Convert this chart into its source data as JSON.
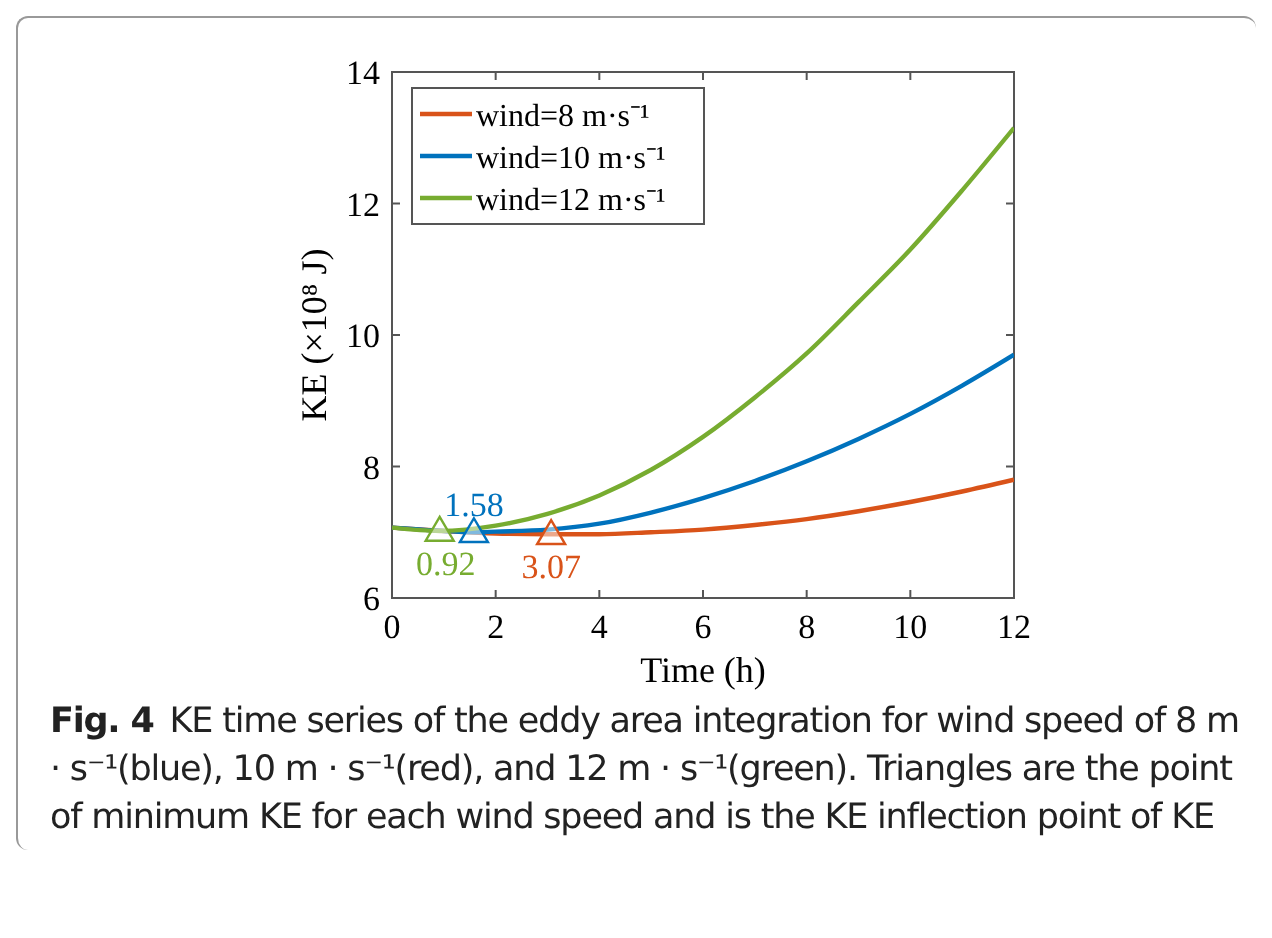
{
  "chart_data": {
    "type": "line",
    "xlabel": "Time (h)",
    "ylabel": "KE (×10⁸ J)",
    "xlim": [
      0,
      12
    ],
    "xticks": [
      0,
      2,
      4,
      6,
      8,
      10,
      12
    ],
    "ylim": [
      6,
      14
    ],
    "yticks": [
      6,
      8,
      10,
      12,
      14
    ],
    "grid": false,
    "legend": "top left",
    "marker": "none",
    "line_style": "solid",
    "series": [
      {
        "name": "wind=8 m·s⁻¹",
        "color": "#d95319",
        "x": [
          0,
          1,
          2,
          3,
          4,
          5,
          6,
          7,
          8,
          9,
          10,
          11,
          12
        ],
        "values": [
          7.07,
          7.02,
          6.98,
          6.97,
          6.97,
          7.0,
          7.04,
          7.11,
          7.2,
          7.32,
          7.46,
          7.62,
          7.8
        ]
      },
      {
        "name": "wind=10 m·s⁻¹",
        "color": "#0072bd",
        "x": [
          0,
          1,
          1.58,
          2,
          3,
          4,
          5,
          6,
          7,
          8,
          9,
          10,
          11,
          12
        ],
        "values": [
          7.07,
          7.02,
          7.0,
          7.01,
          7.04,
          7.13,
          7.3,
          7.52,
          7.78,
          8.08,
          8.42,
          8.8,
          9.23,
          9.7
        ]
      },
      {
        "name": "wind=12 m·s⁻¹",
        "color": "#77ac30",
        "x": [
          0,
          0.92,
          2,
          3,
          4,
          5,
          6,
          7,
          8,
          9,
          10,
          11,
          12
        ],
        "values": [
          7.07,
          7.02,
          7.1,
          7.28,
          7.56,
          7.95,
          8.45,
          9.05,
          9.72,
          10.5,
          11.3,
          12.2,
          13.15
        ]
      },
      {
        "type": "scatter",
        "marker": "triangle",
        "color": "#d95319",
        "x": [
          3.07
        ],
        "values": [
          6.97
        ]
      },
      {
        "type": "scatter",
        "marker": "triangle",
        "color": "#0072bd",
        "x": [
          1.58
        ],
        "values": [
          7.0
        ]
      },
      {
        "type": "scatter",
        "marker": "triangle",
        "color": "#77ac30",
        "x": [
          0.92
        ],
        "values": [
          7.02
        ]
      }
    ],
    "annotations": [
      {
        "text": "3.07",
        "x": 3.07,
        "y": 6.97
      },
      {
        "text": "1.58",
        "x": 1.58,
        "y": 7.0
      },
      {
        "text": "0.92",
        "x": 0.92,
        "y": 7.02
      },
      "Fig. 4",
      "KE time series of the eddy area integration for wind speed of 8 m · s⁻¹(blue), 10 m · s⁻¹(red), and 12 m · s⁻¹(green). Triangles are the point of minimum KE for each wind speed and is the KE inflection point of KE"
    ]
  }
}
